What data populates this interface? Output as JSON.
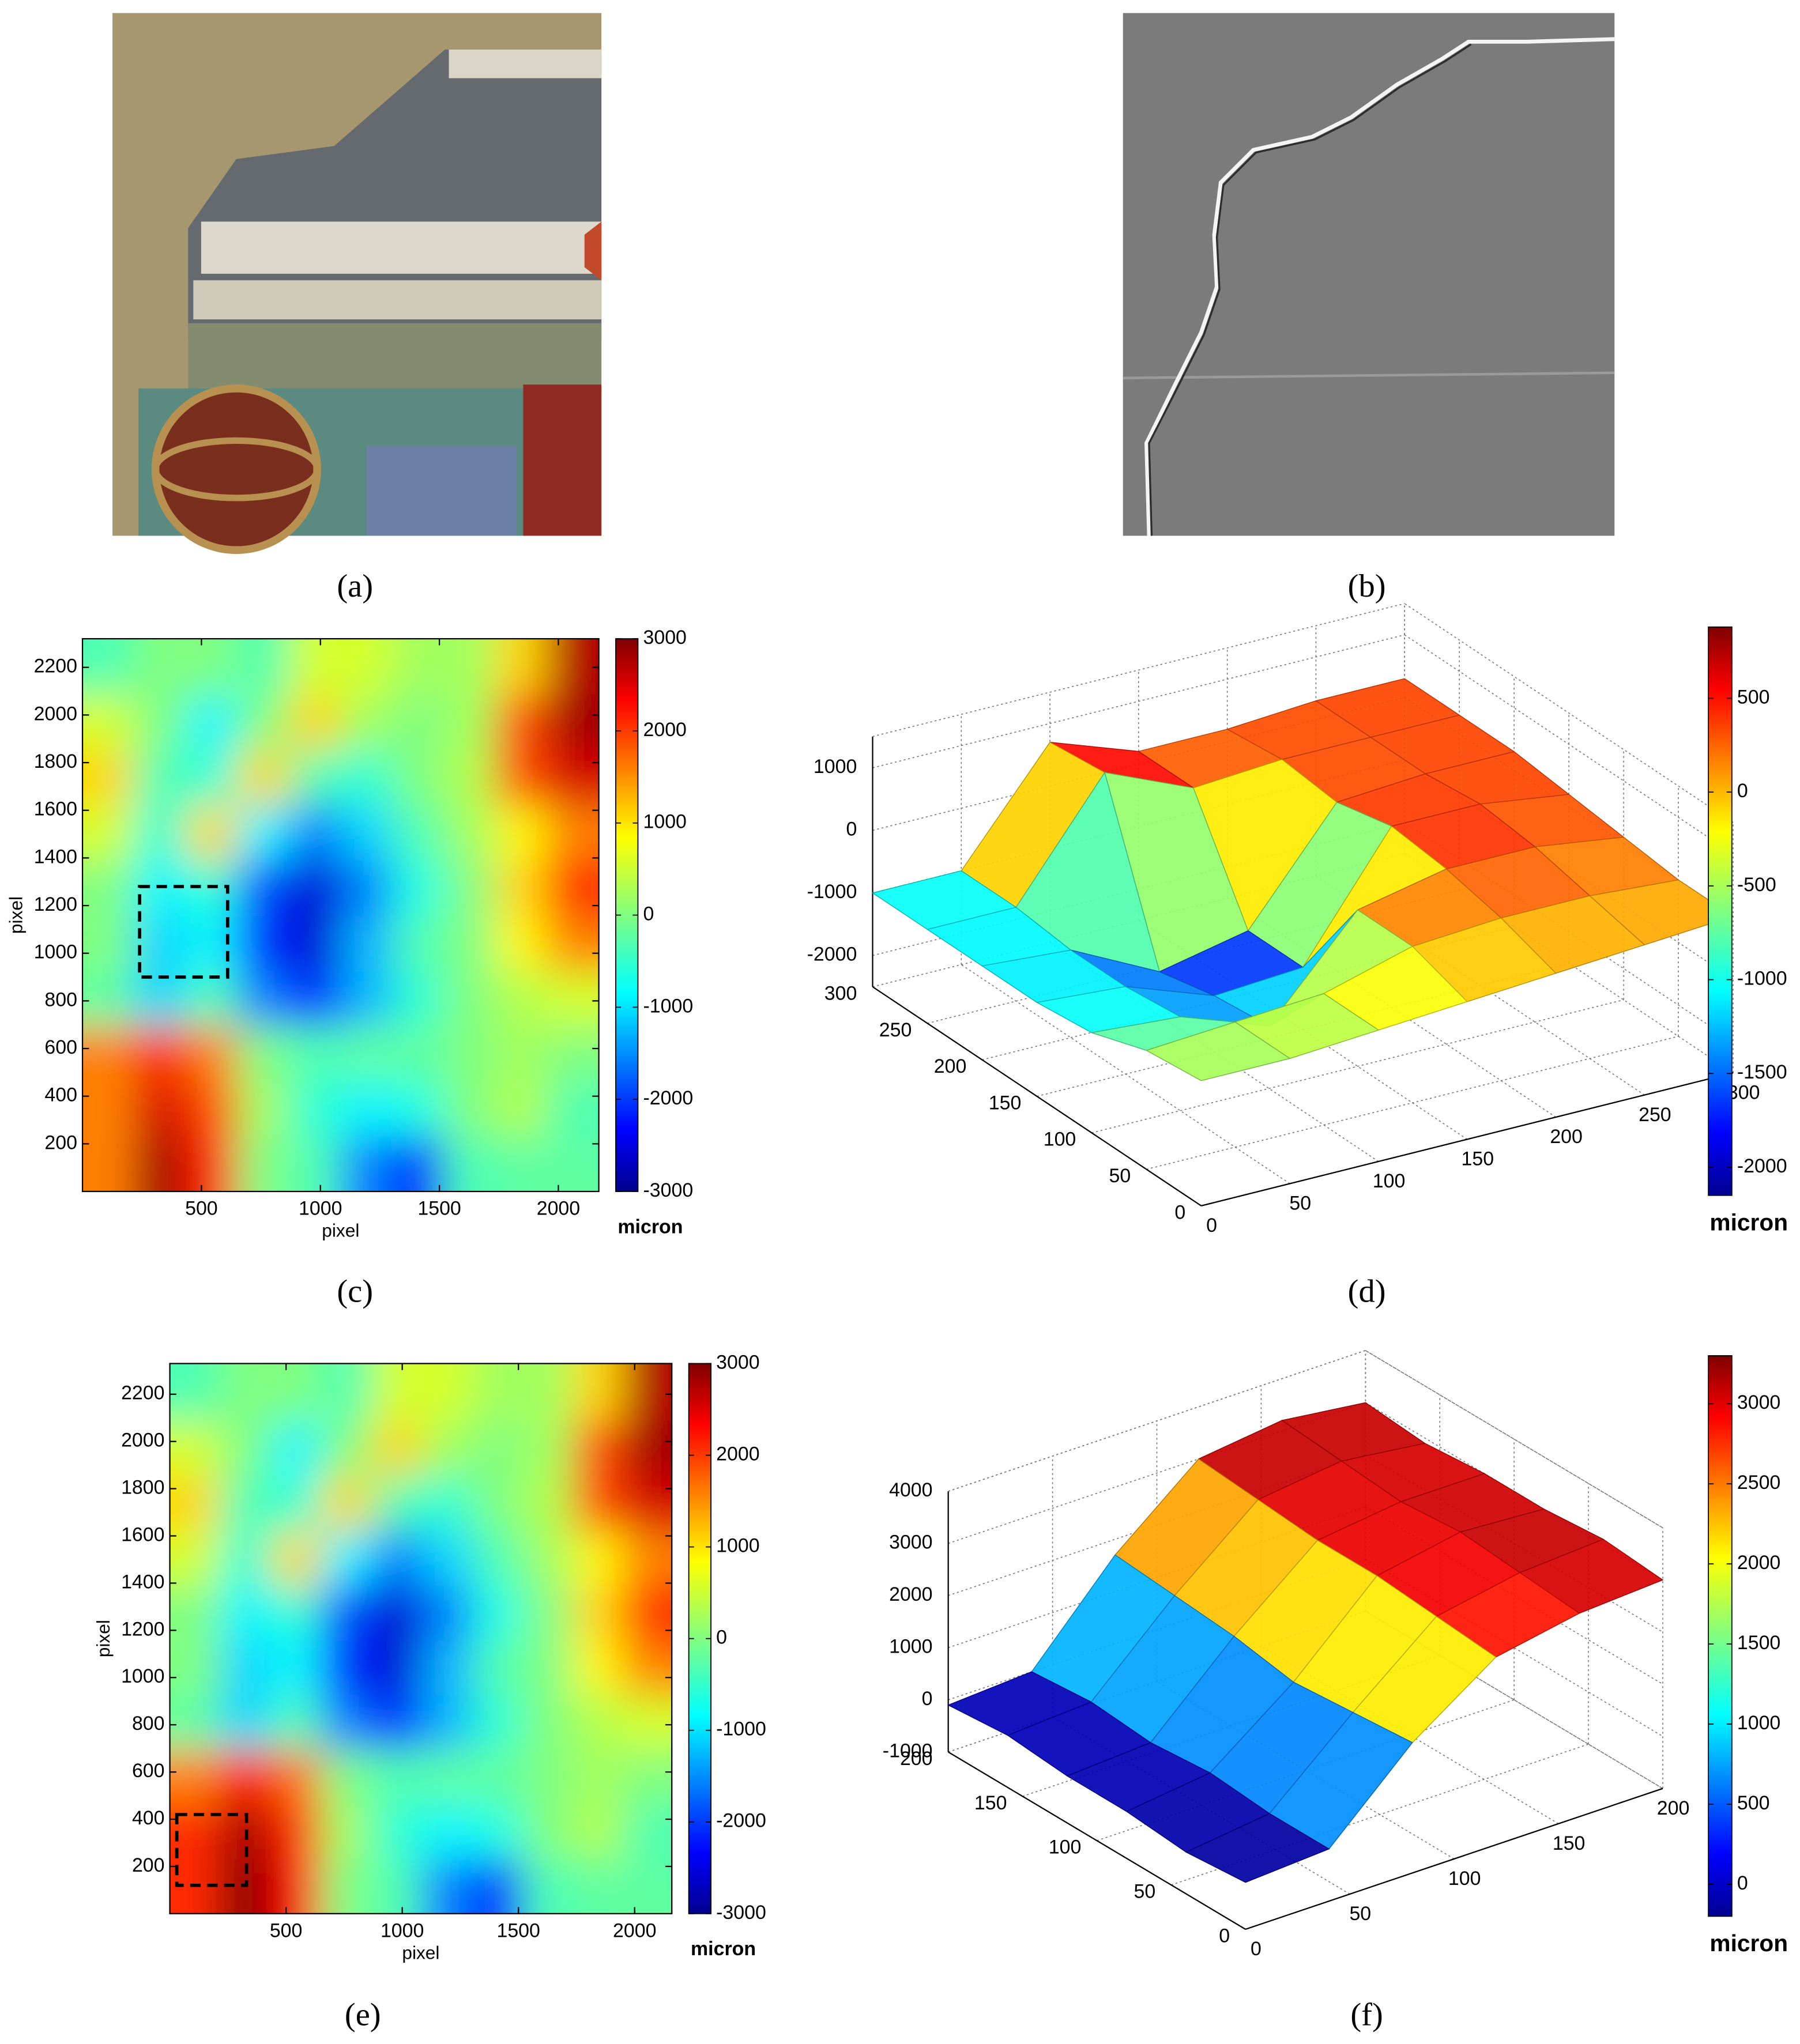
{
  "panel_labels": [
    "(a)",
    "(b)",
    "(c)",
    "(d)",
    "(e)",
    "(f)"
  ],
  "chart_data": [
    {
      "type": "heatmap",
      "xlabel": "pixel",
      "ylabel": "pixel",
      "colormap": "jet",
      "xlim": [
        0,
        2170
      ],
      "ylim": [
        0,
        2320
      ],
      "xticks": [
        500,
        1000,
        1500,
        2000
      ],
      "yticks": [
        200,
        400,
        600,
        800,
        1000,
        1200,
        1400,
        1600,
        1800,
        2000,
        2200
      ],
      "x": [
        108,
        325,
        542,
        759,
        976,
        1193,
        1410,
        1627,
        1844,
        2061
      ],
      "y": [
        116,
        348,
        580,
        812,
        1044,
        1276,
        1508,
        1740,
        1972,
        2204
      ],
      "z": [
        [
          1500,
          2800,
          2000,
          0,
          -300,
          -1500,
          -2000,
          -300,
          -200,
          -200
        ],
        [
          1500,
          2500,
          1800,
          200,
          -500,
          -800,
          -600,
          0,
          300,
          -300
        ],
        [
          1500,
          2000,
          1500,
          0,
          -300,
          -200,
          -200,
          0,
          200,
          0
        ],
        [
          -200,
          -1000,
          -300,
          -1500,
          -2000,
          -1200,
          -500,
          0,
          300,
          500
        ],
        [
          0,
          -1000,
          -800,
          -2000,
          -2500,
          -1200,
          -300,
          0,
          800,
          1500
        ],
        [
          0,
          -800,
          -500,
          -1800,
          -2500,
          -1500,
          -600,
          0,
          1000,
          2000
        ],
        [
          500,
          -500,
          1000,
          -800,
          -1500,
          -1000,
          -300,
          200,
          800,
          1500
        ],
        [
          1000,
          -300,
          -500,
          1000,
          -300,
          -500,
          0,
          300,
          1800,
          2500
        ],
        [
          500,
          0,
          -800,
          0,
          1000,
          200,
          0,
          200,
          1800,
          2800
        ],
        [
          -300,
          0,
          0,
          -300,
          500,
          500,
          200,
          200,
          1000,
          2700
        ]
      ],
      "clim": [
        -3000,
        3000
      ],
      "cticks": [
        -3000,
        -2000,
        -1000,
        0,
        1000,
        2000,
        3000
      ],
      "colorbar_label": "micron",
      "box": {
        "x": [
          240,
          610
        ],
        "y": [
          900,
          1280
        ]
      }
    },
    {
      "type": "surface",
      "colormap": "jet",
      "x": [
        0,
        50,
        100,
        150,
        200,
        250,
        300
      ],
      "y": [
        0,
        50,
        100,
        150,
        200,
        250,
        300
      ],
      "z": [
        [
          -500,
          -500,
          -400,
          -300,
          -200,
          -100,
          0
        ],
        [
          -600,
          -500,
          -400,
          0,
          100,
          100,
          0
        ],
        [
          -900,
          -1000,
          -1500,
          0,
          300,
          300,
          100
        ],
        [
          -1000,
          -1100,
          -1600,
          -1500,
          400,
          400,
          200
        ],
        [
          -1000,
          -1100,
          -1800,
          -1500,
          200,
          300,
          300
        ],
        [
          -1000,
          -1000,
          800,
          200,
          300,
          300,
          300
        ],
        [
          -1000,
          -1000,
          700,
          200,
          200,
          300,
          300
        ]
      ],
      "xlim": [
        0,
        300
      ],
      "ylim": [
        0,
        300
      ],
      "zlim": [
        -2500,
        1500
      ],
      "xticks": [
        0,
        50,
        100,
        150,
        200,
        250,
        300
      ],
      "yticks": [
        0,
        50,
        100,
        150,
        200,
        250,
        300
      ],
      "zticks": [
        -2000,
        -1000,
        0,
        1000
      ],
      "clim": [
        -2150,
        880
      ],
      "cticks": [
        -2000,
        -1500,
        -1000,
        -500,
        0,
        500
      ],
      "colorbar_label": "micron"
    },
    {
      "type": "heatmap",
      "xlabel": "pixel",
      "ylabel": "pixel",
      "colormap": "jet",
      "xlim": [
        0,
        2160
      ],
      "ylim": [
        0,
        2330
      ],
      "xticks": [
        500,
        1000,
        1500,
        2000
      ],
      "yticks": [
        200,
        400,
        600,
        800,
        1000,
        1200,
        1400,
        1600,
        1800,
        2000,
        2200
      ],
      "x": [
        108,
        325,
        542,
        759,
        976,
        1193,
        1410,
        1627,
        1844,
        2061
      ],
      "y": [
        116,
        348,
        580,
        812,
        1044,
        1276,
        1508,
        1740,
        1972,
        2204
      ],
      "z": [
        [
          2000,
          3000,
          2200,
          0,
          -300,
          -1500,
          -2000,
          -300,
          -200,
          -200
        ],
        [
          2000,
          2800,
          2000,
          200,
          -500,
          -800,
          -600,
          0,
          300,
          -300
        ],
        [
          1500,
          2200,
          1600,
          0,
          -300,
          -200,
          -200,
          0,
          200,
          0
        ],
        [
          -200,
          -1000,
          -300,
          -1500,
          -2000,
          -1200,
          -500,
          0,
          300,
          500
        ],
        [
          0,
          -1000,
          -800,
          -2000,
          -2500,
          -1200,
          -300,
          0,
          800,
          1500
        ],
        [
          0,
          -800,
          -500,
          -1800,
          -2500,
          -1500,
          -600,
          0,
          1000,
          2000
        ],
        [
          500,
          -500,
          1000,
          -800,
          -1500,
          -1000,
          -300,
          200,
          800,
          1500
        ],
        [
          1000,
          -300,
          -500,
          1000,
          -300,
          -500,
          0,
          300,
          1800,
          2500
        ],
        [
          500,
          0,
          -800,
          0,
          1000,
          200,
          0,
          200,
          1800,
          2800
        ],
        [
          -300,
          0,
          0,
          -300,
          500,
          500,
          200,
          200,
          1000,
          2700
        ]
      ],
      "clim": [
        -3000,
        3000
      ],
      "cticks": [
        -3000,
        -2000,
        -1000,
        0,
        1000,
        2000,
        3000
      ],
      "colorbar_label": "micron",
      "box": {
        "x": [
          30,
          330
        ],
        "y": [
          120,
          420
        ]
      }
    },
    {
      "type": "surface",
      "colormap": "jet",
      "x": [
        0,
        40,
        80,
        120,
        160,
        200
      ],
      "y": [
        0,
        40,
        80,
        120,
        160,
        200
      ],
      "z": [
        [
          -100,
          0,
          1500,
          2600,
          2900,
          3000
        ],
        [
          -200,
          0,
          1400,
          2700,
          3000,
          3100
        ],
        [
          -100,
          100,
          1300,
          2800,
          3100,
          3000
        ],
        [
          -100,
          0,
          1500,
          2800,
          3000,
          3000
        ],
        [
          0,
          100,
          1600,
          2900,
          3100,
          2900
        ],
        [
          -100,
          0,
          1700,
          3000,
          3200,
          3000
        ]
      ],
      "xlim": [
        0,
        200
      ],
      "ylim": [
        0,
        200
      ],
      "zlim": [
        -1000,
        4000
      ],
      "xticks": [
        0,
        50,
        100,
        150,
        200
      ],
      "yticks": [
        0,
        50,
        100,
        150,
        200
      ],
      "zticks": [
        -1000,
        0,
        1000,
        2000,
        3000,
        4000
      ],
      "clim": [
        -200,
        3300
      ],
      "cticks": [
        0,
        500,
        1000,
        1500,
        2000,
        2500,
        3000
      ],
      "colorbar_label": "micron"
    }
  ]
}
